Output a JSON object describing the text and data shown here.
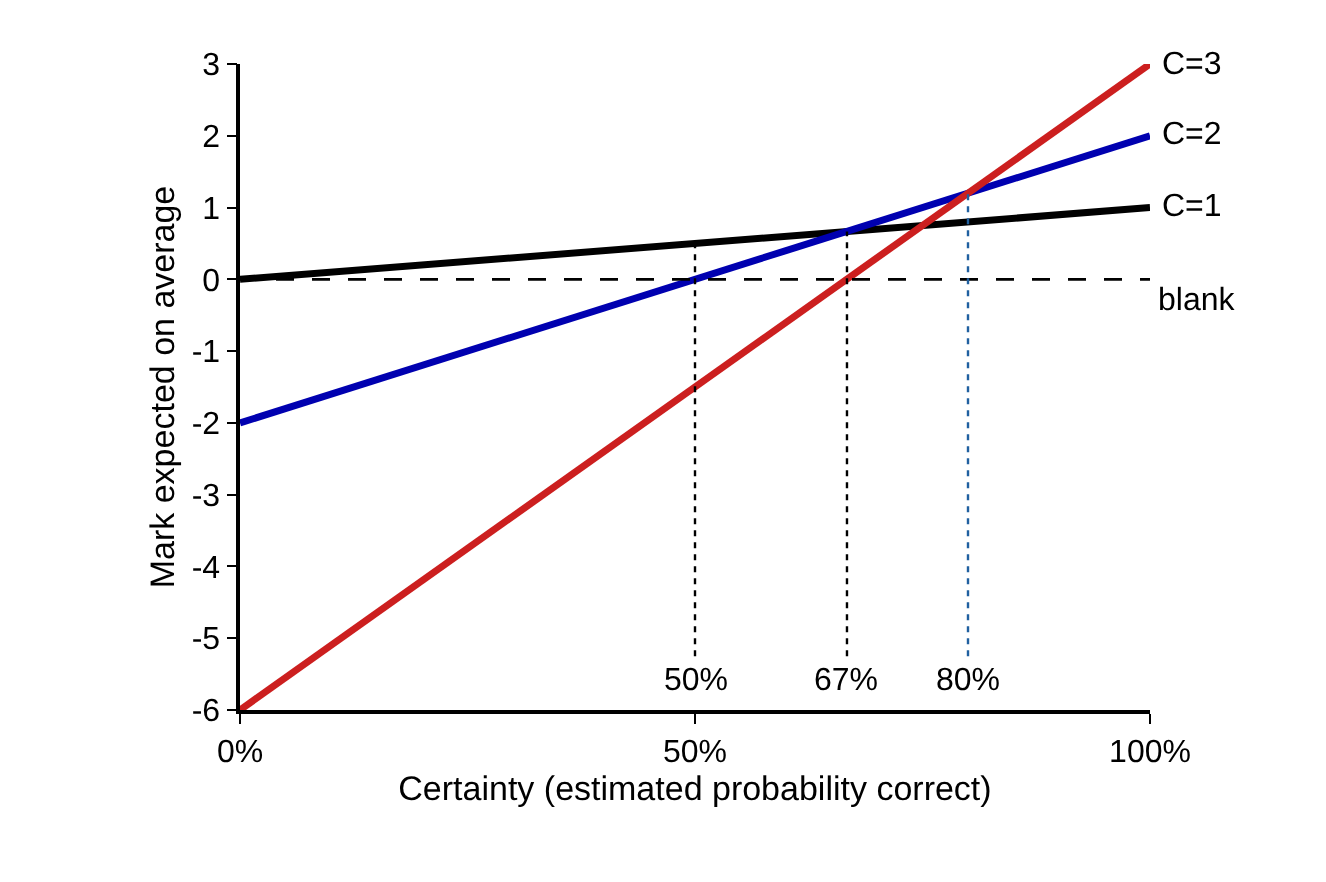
{
  "chart_data": {
    "type": "line",
    "xlabel": "Certainty (estimated probability correct)",
    "ylabel": "Mark expected on average",
    "x": [
      0,
      100
    ],
    "series": [
      {
        "name": "C=1",
        "color": "#000000",
        "values": [
          0,
          1
        ]
      },
      {
        "name": "C=2",
        "color": "#0000b0",
        "values": [
          -2,
          2
        ]
      },
      {
        "name": "C=3",
        "color": "#cc1f1f",
        "values": [
          -6,
          3
        ]
      }
    ],
    "ref_lines": [
      {
        "axis": "y",
        "value": 0,
        "label": "blank",
        "color": "#000000",
        "line_style": "dashed"
      },
      {
        "axis": "x",
        "value": 50,
        "label": "50%",
        "color": "#000000",
        "line_style": "dotted"
      },
      {
        "axis": "x",
        "value": 66.7,
        "label": "67%",
        "color": "#000000",
        "line_style": "dotted"
      },
      {
        "axis": "x",
        "value": 80,
        "label": "80%",
        "color": "#2060a0",
        "line_style": "dotted"
      }
    ],
    "xlim": [
      0,
      100
    ],
    "xticks": [
      {
        "value": 0,
        "label": "0%"
      },
      {
        "value": 50,
        "label": "50%"
      },
      {
        "value": 100,
        "label": "100%"
      }
    ],
    "ylim": [
      -6,
      3
    ],
    "yticks": [
      -6,
      -5,
      -4,
      -3,
      -2,
      -1,
      0,
      1,
      2,
      3
    ],
    "legend": false,
    "marker": "none",
    "line_style": "solid"
  }
}
